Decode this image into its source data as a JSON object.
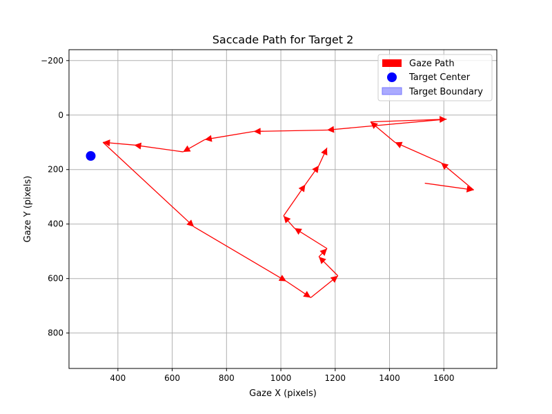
{
  "chart_data": {
    "type": "scatter",
    "title": "Saccade Path for Target 2",
    "xlabel": "Gaze X (pixels)",
    "ylabel": "Gaze Y (pixels)",
    "xlim": [
      220,
      1795
    ],
    "ylim": [
      930,
      -240
    ],
    "y_inverted": true,
    "grid": true,
    "x_ticks": [
      400,
      600,
      800,
      1000,
      1200,
      1400,
      1600
    ],
    "x_tick_labels": [
      "400",
      "600",
      "800",
      "1000",
      "1200",
      "1400",
      "1600"
    ],
    "y_ticks": [
      -200,
      0,
      200,
      400,
      600,
      800
    ],
    "y_tick_labels": [
      "−200",
      "0",
      "200",
      "400",
      "600",
      "800"
    ],
    "legend_position": "top-right",
    "legend": [
      {
        "label": "Gaze Path",
        "swatch": "arrow",
        "color": "#ff0000"
      },
      {
        "label": "Target Center",
        "swatch": "circle",
        "color": "#0000ff"
      },
      {
        "label": "Target Boundary",
        "swatch": "patch",
        "color": "#aaaaff"
      }
    ],
    "gaze_path": {
      "name": "Gaze Path",
      "color": "#ff0000",
      "points": [
        [
          1530,
          250
        ],
        [
          1710,
          275
        ],
        [
          1590,
          175
        ],
        [
          1420,
          100
        ],
        [
          1330,
          25
        ],
        [
          1610,
          15
        ],
        [
          1170,
          55
        ],
        [
          900,
          60
        ],
        [
          720,
          90
        ],
        [
          640,
          135
        ],
        [
          460,
          110
        ],
        [
          345,
          100
        ],
        [
          680,
          410
        ],
        [
          1020,
          610
        ],
        [
          1110,
          670
        ],
        [
          1210,
          590
        ],
        [
          1140,
          520
        ],
        [
          1170,
          490
        ],
        [
          1050,
          415
        ],
        [
          1010,
          370
        ],
        [
          1090,
          255
        ],
        [
          1140,
          185
        ],
        [
          1170,
          120
        ]
      ]
    },
    "target_center": {
      "name": "Target Center",
      "x": 300,
      "y": 150,
      "color": "#0000ff"
    }
  }
}
